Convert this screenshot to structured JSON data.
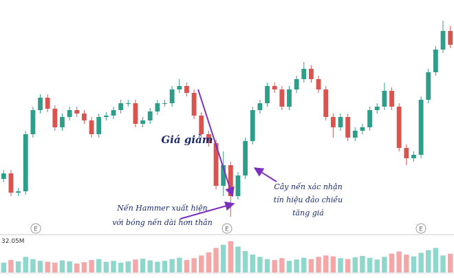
{
  "chart_data": {
    "type": "candlestick",
    "ylim": [
      70,
      410
    ],
    "up_color": "#2e9e8a",
    "down_color": "#d9534f",
    "open": [
      150,
      158,
      130,
      132,
      215,
      250,
      268,
      252,
      225,
      240,
      250,
      245,
      235,
      215,
      240,
      242,
      250,
      260,
      260,
      230,
      235,
      248,
      260,
      260,
      280,
      285,
      275,
      242,
      215,
      202,
      140,
      170,
      125,
      155,
      205,
      250,
      260,
      285,
      280,
      255,
      280,
      295,
      310,
      295,
      280,
      240,
      225,
      240,
      210,
      220,
      225,
      250,
      255,
      278,
      255,
      195,
      180,
      185,
      265,
      305,
      338,
      365
    ],
    "high": [
      163,
      163,
      137,
      220,
      255,
      273,
      273,
      257,
      245,
      255,
      255,
      250,
      240,
      245,
      247,
      255,
      265,
      265,
      265,
      240,
      253,
      265,
      265,
      285,
      295,
      290,
      280,
      247,
      220,
      207,
      190,
      175,
      160,
      210,
      255,
      265,
      290,
      290,
      285,
      285,
      300,
      320,
      315,
      300,
      285,
      245,
      245,
      245,
      225,
      230,
      255,
      260,
      290,
      283,
      260,
      200,
      190,
      270,
      310,
      343,
      380,
      372
    ],
    "low": [
      145,
      125,
      125,
      127,
      210,
      245,
      247,
      220,
      220,
      235,
      240,
      230,
      210,
      210,
      235,
      237,
      245,
      255,
      225,
      225,
      230,
      243,
      255,
      255,
      275,
      270,
      237,
      210,
      197,
      135,
      125,
      95,
      120,
      150,
      200,
      245,
      255,
      275,
      250,
      250,
      275,
      290,
      290,
      275,
      235,
      210,
      220,
      205,
      205,
      215,
      220,
      245,
      250,
      250,
      190,
      170,
      175,
      180,
      260,
      300,
      333,
      340
    ],
    "close": [
      158,
      130,
      132,
      215,
      250,
      268,
      252,
      225,
      240,
      250,
      245,
      235,
      215,
      240,
      242,
      250,
      260,
      260,
      230,
      235,
      248,
      260,
      260,
      280,
      285,
      275,
      242,
      215,
      202,
      140,
      170,
      125,
      155,
      205,
      250,
      260,
      285,
      280,
      255,
      280,
      295,
      310,
      295,
      280,
      240,
      225,
      240,
      210,
      220,
      225,
      250,
      255,
      278,
      255,
      195,
      180,
      185,
      265,
      305,
      338,
      365,
      345
    ],
    "volume": {
      "values": [
        22,
        28,
        25,
        35,
        30,
        26,
        24,
        22,
        27,
        25,
        20,
        23,
        28,
        30,
        24,
        26,
        22,
        25,
        29,
        31,
        27,
        24,
        26,
        30,
        33,
        28,
        32,
        38,
        45,
        55,
        62,
        70,
        58,
        48,
        40,
        35,
        30,
        28,
        32,
        26,
        29,
        33,
        30,
        35,
        38,
        36,
        32,
        30,
        34,
        37,
        33,
        29,
        35,
        42,
        47,
        40,
        36,
        44,
        50,
        55,
        38,
        42
      ],
      "ylim": [
        0,
        80
      ],
      "up_color": "#8fd6cc",
      "down_color": "#f4a7a7"
    },
    "volume_label": "32.05M",
    "event_markers": [
      "E",
      "E",
      "E"
    ],
    "annotations": {
      "trend": "Giá giảm",
      "hammer": [
        "Nến Hammer xuất hiện",
        "với bóng nến dài hơn thân"
      ],
      "confirm": [
        "Cây nến xác nhận",
        "tín hiệu đảo chiều",
        "tăng giá"
      ]
    }
  }
}
